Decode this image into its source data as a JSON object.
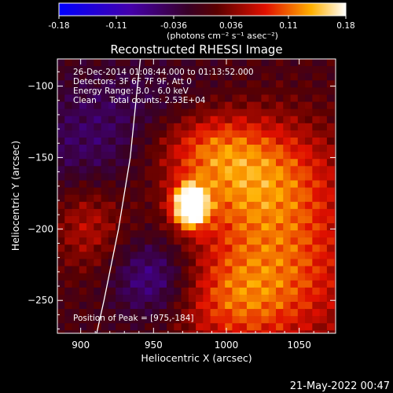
{
  "colorbar": {
    "ticks": [
      "-0.18",
      "-0.11",
      "-0.036",
      "0.036",
      "0.11",
      "0.18"
    ],
    "unit_label": "(photons cm⁻² s⁻¹ asec⁻²)"
  },
  "chart_data": {
    "type": "heatmap",
    "title": "Reconstructed RHESSI Image",
    "xlabel": "Heliocentric X (arcsec)",
    "ylabel": "Heliocentric Y (arcsec)",
    "xlim": [
      884,
      1075
    ],
    "ylim": [
      -273,
      -81
    ],
    "xticks": [
      900,
      950,
      1000,
      1050
    ],
    "yticks": [
      -100,
      -150,
      -200,
      -250
    ],
    "colormap": "blue-purple-red-yellow-white",
    "value_range": [
      -0.18,
      0.18
    ],
    "annotations": [
      "26-Dec-2014 01:08:44.000 to 01:13:52.000",
      "Detectors: 3F 6F 7F 9F, Att 0",
      "Energy Range: 3.0 - 6.0 keV",
      "Clean     Total counts: 2.53E+04"
    ],
    "peak_label": "Position of Peak = [975,-184]",
    "peak": [
      975,
      -184
    ],
    "limb_curve": [
      [
        941,
        -81
      ],
      [
        939,
        -100
      ],
      [
        934,
        -150
      ],
      [
        926,
        -200
      ],
      [
        916,
        -250
      ],
      [
        911,
        -273
      ]
    ],
    "blobs": [
      {
        "x": 975,
        "y": -184,
        "sx": 8,
        "sy": 10,
        "a": 1.25
      },
      {
        "x": 1015,
        "y": -160,
        "sx": 40,
        "sy": 30,
        "a": 0.55
      },
      {
        "x": 1040,
        "y": -225,
        "sx": 40,
        "sy": 45,
        "a": 0.5
      },
      {
        "x": 985,
        "y": -140,
        "sx": 25,
        "sy": 18,
        "a": 0.25
      },
      {
        "x": 1000,
        "y": -250,
        "sx": 30,
        "sy": 25,
        "a": 0.35
      },
      {
        "x": 905,
        "y": -195,
        "sx": 18,
        "sy": 25,
        "a": 0.35
      },
      {
        "x": 950,
        "y": -235,
        "sx": 20,
        "sy": 20,
        "a": -0.45
      },
      {
        "x": 905,
        "y": -150,
        "sx": 30,
        "sy": 25,
        "a": -0.28
      },
      {
        "x": 940,
        "y": -110,
        "sx": 45,
        "sy": 20,
        "a": -0.18
      }
    ]
  },
  "timestamp": "21-May-2022 00:47"
}
